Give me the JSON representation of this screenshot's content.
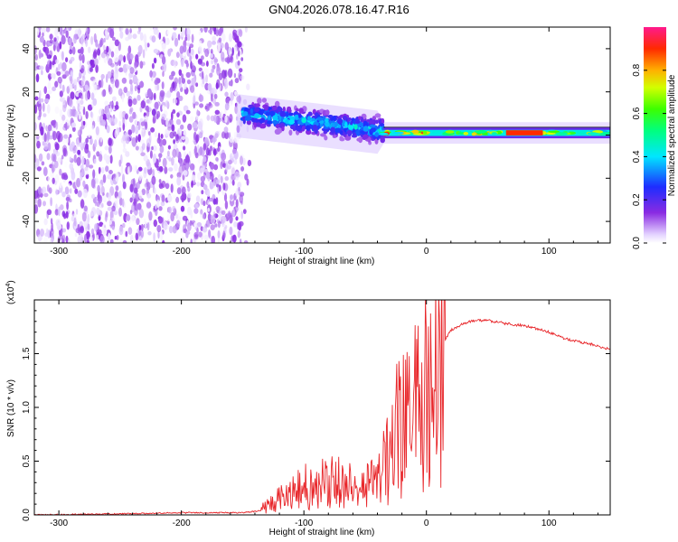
{
  "title": "GN04.2026.078.16.47.R16",
  "chart_data": [
    {
      "type": "heatmap",
      "title": "GN04.2026.078.16.47.R16",
      "xlabel": "Height of straight line (km)",
      "ylabel": "Frequency (Hz)",
      "xlim": [
        -320,
        150
      ],
      "ylim": [
        -50,
        50
      ],
      "x_ticks": [
        -300,
        -200,
        -100,
        0,
        100
      ],
      "y_ticks": [
        -40,
        -20,
        0,
        20,
        40
      ],
      "x_tick_labels": [
        "-300",
        "-200",
        "-100",
        "0",
        "100"
      ],
      "y_tick_labels": [
        "-40",
        "-20",
        "0",
        "20",
        "40"
      ],
      "colorbar": {
        "label": "Normalized spectral amplitude",
        "range": [
          0.0,
          1.0
        ],
        "ticks": [
          0.0,
          0.2,
          0.4,
          0.6,
          0.8
        ],
        "tick_labels": [
          "0.0",
          "0.2",
          "0.4",
          "0.6",
          "0.8"
        ]
      },
      "regions": [
        {
          "name": "noise",
          "x": [
            -320,
            -150
          ],
          "freq_range": [
            -50,
            50
          ],
          "amplitude": [
            0.0,
            0.15
          ]
        },
        {
          "name": "scattered-signal",
          "x": [
            -150,
            -35
          ],
          "freq_center": [
            10,
            2
          ],
          "freq_spread": 4,
          "amplitude": [
            0.1,
            0.45
          ]
        },
        {
          "name": "stable-tone",
          "x": [
            -35,
            150
          ],
          "freq_center": 1,
          "freq_spread": 2.5,
          "amplitude": [
            0.35,
            0.95
          ]
        }
      ]
    },
    {
      "type": "line",
      "title": "",
      "xlabel": "Height of straight line (km)",
      "ylabel": "SNR (10 * v/v)",
      "y_multiplier_label": "(x10",
      "y_multiplier_exp": "4",
      "y_multiplier_close": ")",
      "xlim": [
        -320,
        150
      ],
      "ylim": [
        0,
        2.0
      ],
      "x_ticks": [
        -300,
        -200,
        -100,
        0,
        100
      ],
      "y_ticks": [
        0,
        0.5,
        1.0,
        1.5
      ],
      "x_tick_labels": [
        "-300",
        "-200",
        "-100",
        "0",
        "100"
      ],
      "y_tick_labels": [
        "0.0",
        "0.5",
        "1.0",
        "1.5"
      ],
      "series": [
        {
          "name": "SNR",
          "color": "#e8262a",
          "x": [
            -320,
            -250,
            -200,
            -150,
            -135,
            -125,
            -110,
            -100,
            -90,
            -80,
            -70,
            -60,
            -50,
            -40,
            -30,
            -25,
            -20,
            -10,
            0,
            5,
            10,
            15,
            20,
            30,
            40,
            50,
            60,
            70,
            80,
            90,
            100,
            110,
            120,
            130,
            140,
            150
          ],
          "y": [
            0.0,
            0.01,
            0.02,
            0.02,
            0.04,
            0.12,
            0.2,
            0.28,
            0.3,
            0.34,
            0.3,
            0.26,
            0.28,
            0.32,
            0.6,
            0.9,
            0.85,
            1.05,
            1.2,
            1.3,
            1.42,
            1.62,
            1.72,
            1.78,
            1.81,
            1.81,
            1.79,
            1.77,
            1.76,
            1.73,
            1.7,
            1.65,
            1.62,
            1.6,
            1.57,
            1.54
          ]
        }
      ]
    }
  ],
  "colors": {
    "signal_line": "#e8262a",
    "axis": "#000000",
    "background": "#ffffff"
  }
}
